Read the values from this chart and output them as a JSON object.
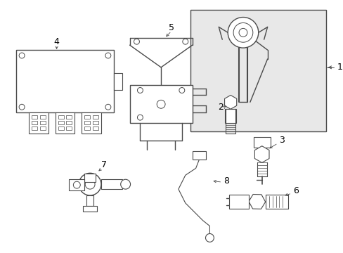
{
  "background_color": "#ffffff",
  "line_color": "#4a4a4a",
  "label_color": "#000000",
  "fig_width": 4.89,
  "fig_height": 3.6,
  "dpi": 100,
  "box1_fill": "#e8e8e8",
  "label_fontsize": 9,
  "border_color": "#888888"
}
